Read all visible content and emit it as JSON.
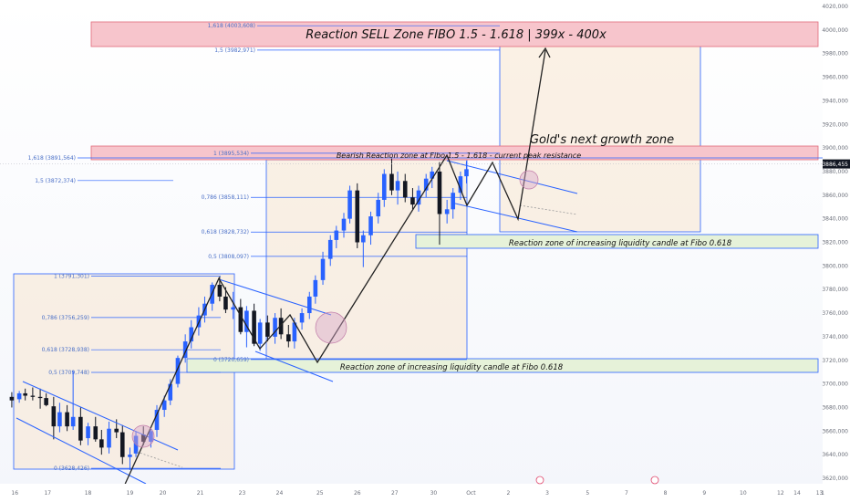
{
  "chart_data": {
    "type": "candlestick",
    "instrument": "Gold",
    "y_axis": {
      "min": 3610,
      "max": 4030,
      "ticks": [
        4020,
        4000,
        3980,
        3960,
        3940,
        3920,
        3900,
        3880,
        3860,
        3840,
        3820,
        3800,
        3780,
        3760,
        3740,
        3720,
        3700,
        3680,
        3660,
        3640,
        3620
      ],
      "tick_labels": [
        "4020,000",
        "4000,000",
        "3980,000",
        "3960,000",
        "3940,000",
        "3920,000",
        "3900,000",
        "3880,000",
        "3860,000",
        "3840,000",
        "3820,000",
        "3800,000",
        "3780,000",
        "3760,000",
        "3740,000",
        "3720,000",
        "3700,000",
        "3680,000",
        "3660,000",
        "3640,000",
        "3620,000"
      ]
    },
    "current_price": 3886.455,
    "current_price_label": "3886,455",
    "x_axis": {
      "min": 0,
      "max": 55,
      "labels": [
        {
          "label": "16",
          "x": 0.5
        },
        {
          "label": "17",
          "x": 2.7
        },
        {
          "label": "18",
          "x": 5.4
        },
        {
          "label": "19",
          "x": 8.2
        },
        {
          "label": "20",
          "x": 10.4
        },
        {
          "label": "21",
          "x": 12.9
        },
        {
          "label": "23",
          "x": 15.7
        },
        {
          "label": "24",
          "x": 18.2
        },
        {
          "label": "25",
          "x": 20.9
        },
        {
          "label": "26",
          "x": 23.4
        },
        {
          "label": "27",
          "x": 25.9
        },
        {
          "label": "30",
          "x": 28.5
        },
        {
          "label": "Oct",
          "x": 31.0
        },
        {
          "label": "2",
          "x": 33.5
        },
        {
          "label": "3",
          "x": 36.1
        },
        {
          "label": "5",
          "x": 38.8
        },
        {
          "label": "7",
          "x": 41.4
        },
        {
          "label": "8",
          "x": 44.0
        },
        {
          "label": "9",
          "x": 46.6
        },
        {
          "label": "10",
          "x": 49.2
        },
        {
          "label": "12",
          "x": 51.7
        },
        {
          "label": "13",
          "x": 54.3
        }
      ],
      "extra_labels": [
        {
          "label": "14",
          "x": 56.9
        },
        {
          "label": "1",
          "x": 59.4
        }
      ]
    },
    "candles": [
      {
        "x": 0.3,
        "o": 3689,
        "h": 3693,
        "l": 3680,
        "c": 3686
      },
      {
        "x": 0.8,
        "o": 3687,
        "h": 3694,
        "l": 3684,
        "c": 3692
      },
      {
        "x": 1.2,
        "o": 3692,
        "h": 3696,
        "l": 3686,
        "c": 3690
      },
      {
        "x": 1.7,
        "o": 3690,
        "h": 3697,
        "l": 3686,
        "c": 3689
      },
      {
        "x": 2.2,
        "o": 3689,
        "h": 3696,
        "l": 3679,
        "c": 3688
      },
      {
        "x": 2.6,
        "o": 3688,
        "h": 3692,
        "l": 3681,
        "c": 3682
      },
      {
        "x": 3.1,
        "o": 3681,
        "h": 3689,
        "l": 3653,
        "c": 3664
      },
      {
        "x": 3.5,
        "o": 3664,
        "h": 3684,
        "l": 3659,
        "c": 3676
      },
      {
        "x": 4.0,
        "o": 3676,
        "h": 3682,
        "l": 3660,
        "c": 3664
      },
      {
        "x": 4.4,
        "o": 3664,
        "h": 3711,
        "l": 3661,
        "c": 3672
      },
      {
        "x": 4.9,
        "o": 3672,
        "h": 3680,
        "l": 3648,
        "c": 3652
      },
      {
        "x": 5.4,
        "o": 3654,
        "h": 3667,
        "l": 3648,
        "c": 3664
      },
      {
        "x": 5.9,
        "o": 3664,
        "h": 3672,
        "l": 3651,
        "c": 3653
      },
      {
        "x": 6.3,
        "o": 3653,
        "h": 3661,
        "l": 3640,
        "c": 3646
      },
      {
        "x": 6.8,
        "o": 3646,
        "h": 3668,
        "l": 3641,
        "c": 3662
      },
      {
        "x": 7.3,
        "o": 3662,
        "h": 3670,
        "l": 3654,
        "c": 3659
      },
      {
        "x": 7.7,
        "o": 3659,
        "h": 3665,
        "l": 3632,
        "c": 3638
      },
      {
        "x": 8.2,
        "o": 3638,
        "h": 3646,
        "l": 3627,
        "c": 3640
      },
      {
        "x": 8.6,
        "o": 3641,
        "h": 3660,
        "l": 3638,
        "c": 3656
      },
      {
        "x": 9.1,
        "o": 3657,
        "h": 3664,
        "l": 3648,
        "c": 3651
      },
      {
        "x": 9.6,
        "o": 3651,
        "h": 3662,
        "l": 3646,
        "c": 3660
      },
      {
        "x": 10.0,
        "o": 3661,
        "h": 3682,
        "l": 3655,
        "c": 3678
      },
      {
        "x": 10.5,
        "o": 3678,
        "h": 3690,
        "l": 3672,
        "c": 3686
      },
      {
        "x": 10.9,
        "o": 3686,
        "h": 3704,
        "l": 3682,
        "c": 3700
      },
      {
        "x": 11.4,
        "o": 3700,
        "h": 3724,
        "l": 3697,
        "c": 3722
      },
      {
        "x": 11.9,
        "o": 3722,
        "h": 3742,
        "l": 3718,
        "c": 3736
      },
      {
        "x": 12.3,
        "o": 3736,
        "h": 3754,
        "l": 3730,
        "c": 3748
      },
      {
        "x": 12.8,
        "o": 3748,
        "h": 3765,
        "l": 3741,
        "c": 3758
      },
      {
        "x": 13.2,
        "o": 3758,
        "h": 3774,
        "l": 3752,
        "c": 3768
      },
      {
        "x": 13.7,
        "o": 3768,
        "h": 3786,
        "l": 3762,
        "c": 3784
      },
      {
        "x": 14.2,
        "o": 3784,
        "h": 3791,
        "l": 3770,
        "c": 3774
      },
      {
        "x": 14.6,
        "o": 3774,
        "h": 3782,
        "l": 3760,
        "c": 3763
      },
      {
        "x": 15.1,
        "o": 3763,
        "h": 3778,
        "l": 3755,
        "c": 3765
      },
      {
        "x": 15.6,
        "o": 3765,
        "h": 3772,
        "l": 3742,
        "c": 3744
      },
      {
        "x": 16.0,
        "o": 3744,
        "h": 3766,
        "l": 3731,
        "c": 3762
      },
      {
        "x": 16.5,
        "o": 3762,
        "h": 3768,
        "l": 3732,
        "c": 3734
      },
      {
        "x": 16.9,
        "o": 3734,
        "h": 3755,
        "l": 3728,
        "c": 3752
      },
      {
        "x": 17.4,
        "o": 3752,
        "h": 3758,
        "l": 3736,
        "c": 3740
      },
      {
        "x": 17.9,
        "o": 3740,
        "h": 3760,
        "l": 3734,
        "c": 3756
      },
      {
        "x": 18.3,
        "o": 3756,
        "h": 3764,
        "l": 3738,
        "c": 3742
      },
      {
        "x": 18.8,
        "o": 3742,
        "h": 3750,
        "l": 3731,
        "c": 3736
      },
      {
        "x": 19.2,
        "o": 3736,
        "h": 3756,
        "l": 3730,
        "c": 3752
      },
      {
        "x": 19.7,
        "o": 3752,
        "h": 3764,
        "l": 3746,
        "c": 3760
      },
      {
        "x": 20.2,
        "o": 3760,
        "h": 3778,
        "l": 3755,
        "c": 3774
      },
      {
        "x": 20.6,
        "o": 3774,
        "h": 3792,
        "l": 3768,
        "c": 3788
      },
      {
        "x": 21.1,
        "o": 3788,
        "h": 3812,
        "l": 3784,
        "c": 3806
      },
      {
        "x": 21.6,
        "o": 3806,
        "h": 3826,
        "l": 3800,
        "c": 3822
      },
      {
        "x": 22.0,
        "o": 3822,
        "h": 3834,
        "l": 3815,
        "c": 3830
      },
      {
        "x": 22.5,
        "o": 3830,
        "h": 3845,
        "l": 3824,
        "c": 3840
      },
      {
        "x": 22.9,
        "o": 3840,
        "h": 3868,
        "l": 3836,
        "c": 3864
      },
      {
        "x": 23.4,
        "o": 3864,
        "h": 3870,
        "l": 3815,
        "c": 3820
      },
      {
        "x": 23.8,
        "o": 3820,
        "h": 3830,
        "l": 3799,
        "c": 3826
      },
      {
        "x": 24.3,
        "o": 3826,
        "h": 3846,
        "l": 3818,
        "c": 3842
      },
      {
        "x": 24.8,
        "o": 3842,
        "h": 3862,
        "l": 3836,
        "c": 3856
      },
      {
        "x": 25.2,
        "o": 3856,
        "h": 3882,
        "l": 3850,
        "c": 3878
      },
      {
        "x": 25.7,
        "o": 3878,
        "h": 3891,
        "l": 3860,
        "c": 3864
      },
      {
        "x": 26.1,
        "o": 3864,
        "h": 3880,
        "l": 3852,
        "c": 3872
      },
      {
        "x": 26.6,
        "o": 3872,
        "h": 3878,
        "l": 3854,
        "c": 3858
      },
      {
        "x": 27.1,
        "o": 3858,
        "h": 3866,
        "l": 3848,
        "c": 3852
      },
      {
        "x": 27.5,
        "o": 3852,
        "h": 3868,
        "l": 3846,
        "c": 3864
      },
      {
        "x": 28.0,
        "o": 3864,
        "h": 3878,
        "l": 3858,
        "c": 3874
      },
      {
        "x": 28.4,
        "o": 3874,
        "h": 3884,
        "l": 3866,
        "c": 3880
      },
      {
        "x": 28.9,
        "o": 3880,
        "h": 3888,
        "l": 3818,
        "c": 3844
      },
      {
        "x": 29.4,
        "o": 3844,
        "h": 3856,
        "l": 3836,
        "c": 3848
      },
      {
        "x": 29.8,
        "o": 3848,
        "h": 3866,
        "l": 3840,
        "c": 3862
      },
      {
        "x": 30.3,
        "o": 3862,
        "h": 3880,
        "l": 3856,
        "c": 3876
      },
      {
        "x": 30.7,
        "o": 3876,
        "h": 3889,
        "l": 3870,
        "c": 3882
      }
    ],
    "fibonacci_levels": [
      {
        "label": "1,618 (4003,608)",
        "price": 4003.608
      },
      {
        "label": "1,5 (3982,971)",
        "price": 3982.971
      },
      {
        "label": "1 (3895,534)",
        "price": 3895.534
      },
      {
        "label": "0,786 (3858,111)",
        "price": 3858.111
      },
      {
        "label": "0,618 (3828,732)",
        "price": 3828.732
      },
      {
        "label": "0,5 (3808,097)",
        "price": 3808.097
      },
      {
        "label": "1,618 (3891,564)",
        "price": 3891.564
      },
      {
        "label": "1,5 (3872,374)",
        "price": 3872.374
      },
      {
        "label": "1 (3791,301)",
        "price": 3791.301
      },
      {
        "label": "0,786 (3756,259)",
        "price": 3756.259
      },
      {
        "label": "0,618 (3728,938)",
        "price": 3728.938
      },
      {
        "label": "0,5 (3709,748)",
        "price": 3709.748
      },
      {
        "label": "0 (3720,659)",
        "price": 3720.659
      },
      {
        "label": "0 (3628,426)",
        "price": 3628.426
      }
    ],
    "annotations": [
      {
        "text": "Reaction SELL Zone FIBO 1.5 - 1.618 | 399x - 400x"
      },
      {
        "text": "Gold's next growth zone"
      },
      {
        "text": "Bearish Reaction zone at Fibo 1.5 - 1.618 - current peak resistance"
      },
      {
        "text": "Reaction zone of increasing liquidity candle at Fibo 0.618"
      },
      {
        "text": "Reaction zone of increasing liquidity candle at Fibo 0.618"
      }
    ],
    "colors": {
      "bull": "#2962ff",
      "bear": "#131722",
      "sell_zone": "#f7c5cc",
      "buy_zone": "#e6f2d9",
      "fib_line": "#2962ff",
      "box": "#f7e6cf"
    },
    "grid": false
  }
}
